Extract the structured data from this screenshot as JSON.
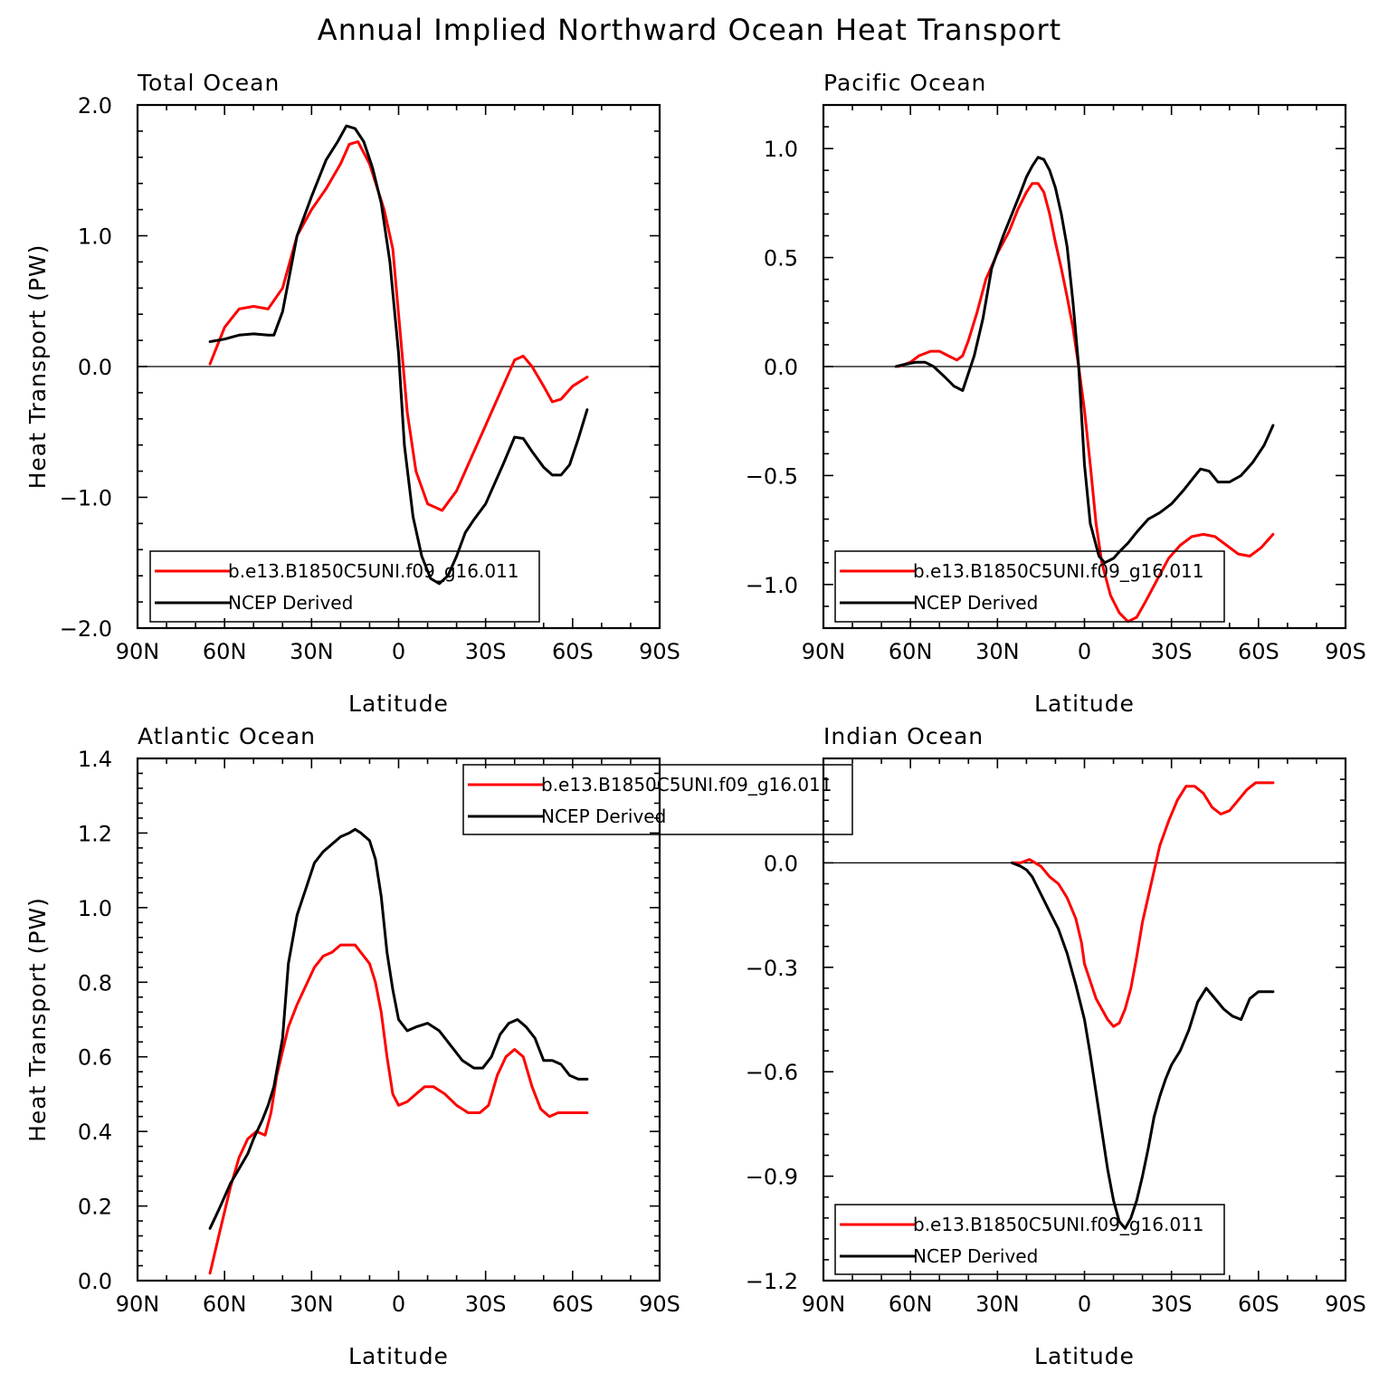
{
  "title": "Annual Implied Northward Ocean Heat Transport",
  "colors": {
    "model": "#ff0000",
    "obs": "#000000",
    "axis": "#000000"
  },
  "chart_data": [
    {
      "type": "line",
      "panel": "Total Ocean",
      "title": "Total Ocean",
      "xlabel": "Latitude",
      "ylabel": "Heat Transport (PW)",
      "xlim": [
        90,
        -90
      ],
      "ylim": [
        -2.0,
        2.0
      ],
      "xticks": [
        90,
        60,
        30,
        0,
        -30,
        -60,
        -90
      ],
      "xtick_labels": [
        "90N",
        "60N",
        "30N",
        "0",
        "30S",
        "60S",
        "90S"
      ],
      "yticks": [
        -2.0,
        -1.0,
        0.0,
        1.0,
        2.0
      ],
      "ytick_labels": [
        "−2.0",
        "−1.0",
        "0.0",
        "1.0",
        "2.0"
      ],
      "legend_position": "bottom-left",
      "series": [
        {
          "name": "b.e13.B1850C5UNI.f09_g16.011",
          "color": "#ff0000",
          "x": [
            65,
            60,
            55,
            50,
            45,
            40,
            35,
            30,
            25,
            20,
            17,
            14,
            10,
            5,
            2,
            0,
            -3,
            -6,
            -10,
            -15,
            -20,
            -25,
            -30,
            -35,
            -40,
            -43,
            -46,
            -50,
            -53,
            -56,
            -60,
            -65
          ],
          "y": [
            0.02,
            0.3,
            0.44,
            0.46,
            0.44,
            0.6,
            1.0,
            1.2,
            1.36,
            1.55,
            1.7,
            1.72,
            1.55,
            1.2,
            0.9,
            0.4,
            -0.35,
            -0.8,
            -1.05,
            -1.1,
            -0.95,
            -0.7,
            -0.45,
            -0.2,
            0.05,
            0.08,
            0.0,
            -0.15,
            -0.27,
            -0.25,
            -0.15,
            -0.08
          ]
        },
        {
          "name": "NCEP Derived",
          "color": "#000000",
          "x": [
            65,
            60,
            55,
            50,
            45,
            43,
            40,
            35,
            30,
            25,
            21,
            18,
            15,
            12,
            9,
            6,
            3,
            0,
            -2,
            -5,
            -8,
            -11,
            -14,
            -17,
            -20,
            -23,
            -26,
            -30,
            -33,
            -36,
            -40,
            -43,
            -46,
            -50,
            -53,
            -56,
            -59,
            -62,
            -65
          ],
          "y": [
            0.19,
            0.21,
            0.24,
            0.25,
            0.24,
            0.24,
            0.42,
            1.0,
            1.3,
            1.58,
            1.72,
            1.84,
            1.82,
            1.72,
            1.52,
            1.25,
            0.8,
            0.1,
            -0.6,
            -1.15,
            -1.45,
            -1.62,
            -1.66,
            -1.6,
            -1.45,
            -1.27,
            -1.17,
            -1.05,
            -0.9,
            -0.75,
            -0.54,
            -0.55,
            -0.65,
            -0.77,
            -0.83,
            -0.83,
            -0.75,
            -0.55,
            -0.33
          ]
        }
      ]
    },
    {
      "type": "line",
      "panel": "Pacific Ocean",
      "title": "Pacific Ocean",
      "xlabel": "Latitude",
      "ylabel": "",
      "xlim": [
        90,
        -90
      ],
      "ylim": [
        -1.2,
        1.2
      ],
      "xticks": [
        90,
        60,
        30,
        0,
        -30,
        -60,
        -90
      ],
      "xtick_labels": [
        "90N",
        "60N",
        "30N",
        "0",
        "30S",
        "60S",
        "90S"
      ],
      "yticks": [
        -1.0,
        -0.5,
        0.0,
        0.5,
        1.0
      ],
      "ytick_labels": [
        "−1.0",
        "−0.5",
        "0.0",
        "0.5",
        "1.0"
      ],
      "legend_position": "bottom-left",
      "series": [
        {
          "name": "b.e13.B1850C5UNI.f09_g16.011",
          "color": "#ff0000",
          "x": [
            64,
            60,
            57,
            53,
            50,
            47,
            44,
            42,
            40,
            37,
            34,
            30,
            26,
            23,
            20,
            18,
            16,
            14,
            12,
            10,
            8,
            6,
            4,
            2,
            0,
            -2,
            -4,
            -6,
            -9,
            -12,
            -15,
            -18,
            -21,
            -25,
            -29,
            -33,
            -37,
            -41,
            -45,
            -49,
            -53,
            -57,
            -61,
            -65
          ],
          "y": [
            0.0,
            0.02,
            0.05,
            0.07,
            0.07,
            0.05,
            0.03,
            0.05,
            0.12,
            0.25,
            0.4,
            0.52,
            0.62,
            0.72,
            0.8,
            0.84,
            0.84,
            0.8,
            0.7,
            0.57,
            0.45,
            0.32,
            0.18,
            0.0,
            -0.2,
            -0.45,
            -0.72,
            -0.9,
            -1.05,
            -1.13,
            -1.17,
            -1.15,
            -1.08,
            -0.98,
            -0.88,
            -0.82,
            -0.78,
            -0.77,
            -0.78,
            -0.82,
            -0.86,
            -0.87,
            -0.83,
            -0.77
          ]
        },
        {
          "name": "NCEP Derived",
          "color": "#000000",
          "x": [
            65,
            62,
            58,
            55,
            52,
            48,
            45,
            42,
            38,
            35,
            32,
            28,
            25,
            22,
            20,
            18,
            16,
            14,
            12,
            10,
            8,
            6,
            4,
            2,
            0,
            -2,
            -5,
            -7,
            -10,
            -12,
            -15,
            -18,
            -22,
            -26,
            -30,
            -34,
            -37,
            -40,
            -43,
            -46,
            -50,
            -54,
            -58,
            -62,
            -65
          ],
          "y": [
            0.0,
            0.01,
            0.02,
            0.02,
            0.0,
            -0.05,
            -0.09,
            -0.11,
            0.05,
            0.22,
            0.45,
            0.6,
            0.7,
            0.8,
            0.87,
            0.92,
            0.96,
            0.95,
            0.9,
            0.82,
            0.7,
            0.55,
            0.3,
            0.0,
            -0.45,
            -0.72,
            -0.87,
            -0.9,
            -0.88,
            -0.85,
            -0.81,
            -0.76,
            -0.7,
            -0.67,
            -0.63,
            -0.57,
            -0.52,
            -0.47,
            -0.48,
            -0.53,
            -0.53,
            -0.5,
            -0.44,
            -0.36,
            -0.27
          ]
        }
      ]
    },
    {
      "type": "line",
      "panel": "Atlantic Ocean",
      "title": "Atlantic Ocean",
      "xlabel": "Latitude",
      "ylabel": "Heat Transport (PW)",
      "xlim": [
        90,
        -90
      ],
      "ylim": [
        0.0,
        1.4
      ],
      "xticks": [
        90,
        60,
        30,
        0,
        -30,
        -60,
        -90
      ],
      "xtick_labels": [
        "90N",
        "60N",
        "30N",
        "0",
        "30S",
        "60S",
        "90S"
      ],
      "yticks": [
        0.0,
        0.2,
        0.4,
        0.6,
        0.8,
        1.0,
        1.2,
        1.4
      ],
      "ytick_labels": [
        "0.0",
        "0.2",
        "0.4",
        "0.6",
        "0.8",
        "1.0",
        "1.2",
        "1.4"
      ],
      "legend_position": "top-center",
      "series": [
        {
          "name": "b.e13.B1850C5UNI.f09_g16.011",
          "color": "#ff0000",
          "x": [
            65,
            62,
            58,
            55,
            52,
            49,
            46,
            44,
            42,
            38,
            35,
            32,
            29,
            26,
            23,
            20,
            17,
            15,
            13,
            10,
            8,
            6,
            4,
            2,
            0,
            -3,
            -6,
            -9,
            -12,
            -16,
            -20,
            -24,
            -28,
            -31,
            -34,
            -37,
            -40,
            -43,
            -46,
            -49,
            -52,
            -55,
            -58,
            -61,
            -65
          ],
          "y": [
            0.02,
            0.12,
            0.25,
            0.33,
            0.38,
            0.4,
            0.39,
            0.45,
            0.55,
            0.68,
            0.74,
            0.79,
            0.84,
            0.87,
            0.88,
            0.9,
            0.9,
            0.9,
            0.88,
            0.85,
            0.8,
            0.72,
            0.6,
            0.5,
            0.47,
            0.48,
            0.5,
            0.52,
            0.52,
            0.5,
            0.47,
            0.45,
            0.45,
            0.47,
            0.55,
            0.6,
            0.62,
            0.6,
            0.52,
            0.46,
            0.44,
            0.45,
            0.45,
            0.45,
            0.45
          ]
        },
        {
          "name": "NCEP Derived",
          "color": "#000000",
          "x": [
            65,
            62,
            58,
            55,
            52,
            50,
            47,
            45,
            43,
            40,
            38,
            35,
            32,
            29,
            26,
            23,
            20,
            17,
            15,
            13,
            10,
            8,
            6,
            4,
            2,
            0,
            -3,
            -6,
            -10,
            -14,
            -18,
            -22,
            -26,
            -29,
            -32,
            -35,
            -38,
            -41,
            -44,
            -47,
            -50,
            -53,
            -56,
            -59,
            -62,
            -65
          ],
          "y": [
            0.14,
            0.19,
            0.26,
            0.3,
            0.34,
            0.38,
            0.43,
            0.47,
            0.52,
            0.65,
            0.85,
            0.98,
            1.05,
            1.12,
            1.15,
            1.17,
            1.19,
            1.2,
            1.21,
            1.2,
            1.18,
            1.13,
            1.03,
            0.88,
            0.78,
            0.7,
            0.67,
            0.68,
            0.69,
            0.67,
            0.63,
            0.59,
            0.57,
            0.57,
            0.6,
            0.66,
            0.69,
            0.7,
            0.68,
            0.65,
            0.59,
            0.59,
            0.58,
            0.55,
            0.54,
            0.54
          ]
        }
      ]
    },
    {
      "type": "line",
      "panel": "Indian Ocean",
      "title": "Indian Ocean",
      "xlabel": "Latitude",
      "ylabel": "",
      "xlim": [
        90,
        -90
      ],
      "ylim": [
        -1.2,
        0.3
      ],
      "xticks": [
        90,
        60,
        30,
        0,
        -30,
        -60,
        -90
      ],
      "xtick_labels": [
        "90N",
        "60N",
        "30N",
        "0",
        "30S",
        "60S",
        "90S"
      ],
      "yticks": [
        -1.2,
        -0.9,
        -0.6,
        -0.3,
        0.0
      ],
      "ytick_labels": [
        "−1.2",
        "−0.9",
        "−0.6",
        "−0.3",
        "0.0"
      ],
      "legend_position": "bottom-left",
      "series": [
        {
          "name": "b.e13.B1850C5UNI.f09_g16.011",
          "color": "#ff0000",
          "x": [
            25,
            22,
            19,
            17,
            15,
            12,
            9,
            6,
            3,
            1,
            0,
            -2,
            -4,
            -6,
            -8,
            -10,
            -12,
            -14,
            -16,
            -18,
            -20,
            -23,
            -26,
            -29,
            -32,
            -35,
            -38,
            -41,
            -44,
            -47,
            -50,
            -53,
            -56,
            -59,
            -62,
            -65
          ],
          "y": [
            0.0,
            0.0,
            0.01,
            0.0,
            -0.01,
            -0.04,
            -0.06,
            -0.1,
            -0.16,
            -0.23,
            -0.29,
            -0.34,
            -0.39,
            -0.42,
            -0.45,
            -0.47,
            -0.46,
            -0.42,
            -0.36,
            -0.27,
            -0.17,
            -0.06,
            0.05,
            0.12,
            0.18,
            0.22,
            0.22,
            0.2,
            0.16,
            0.14,
            0.15,
            0.18,
            0.21,
            0.23,
            0.23,
            0.23
          ]
        },
        {
          "name": "NCEP Derived",
          "color": "#000000",
          "x": [
            25,
            22,
            20,
            18,
            15,
            12,
            9,
            6,
            3,
            0,
            -2,
            -4,
            -6,
            -8,
            -10,
            -12,
            -14,
            -16,
            -18,
            -20,
            -22,
            -24,
            -26,
            -28,
            -30,
            -33,
            -36,
            -39,
            -42,
            -45,
            -48,
            -51,
            -54,
            -57,
            -60,
            -62,
            -65
          ],
          "y": [
            0.0,
            -0.01,
            -0.02,
            -0.04,
            -0.09,
            -0.14,
            -0.19,
            -0.26,
            -0.35,
            -0.45,
            -0.55,
            -0.66,
            -0.77,
            -0.88,
            -0.97,
            -1.03,
            -1.05,
            -1.02,
            -0.97,
            -0.9,
            -0.82,
            -0.73,
            -0.67,
            -0.62,
            -0.58,
            -0.54,
            -0.48,
            -0.4,
            -0.36,
            -0.39,
            -0.42,
            -0.44,
            -0.45,
            -0.39,
            -0.37,
            -0.37,
            -0.37
          ]
        }
      ]
    }
  ]
}
